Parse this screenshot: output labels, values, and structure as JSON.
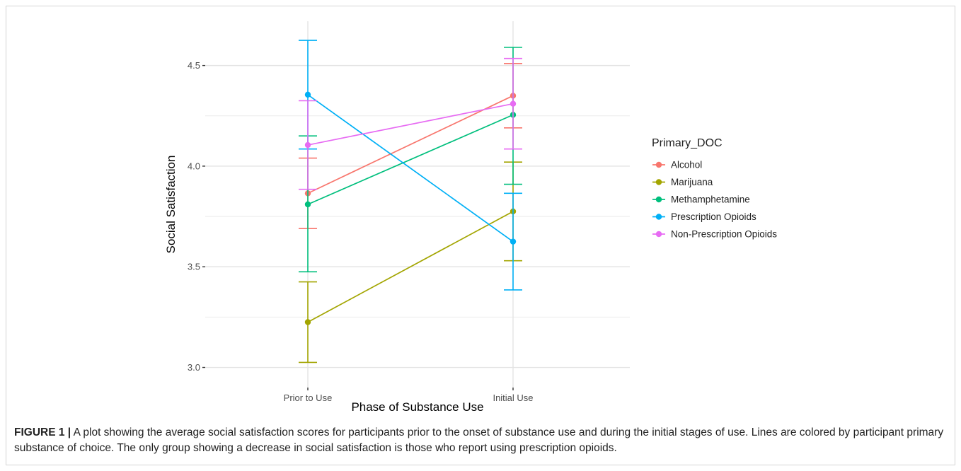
{
  "chart_data": {
    "type": "line",
    "xlabel": "Phase of Substance Use",
    "ylabel": "Social Satisfaction",
    "categories": [
      "Prior to Use",
      "Initial Use"
    ],
    "ylim": [
      2.9,
      4.72
    ],
    "yticks": [
      3.0,
      3.5,
      4.0,
      4.5
    ],
    "ytick_labels": [
      "3.0",
      "3.5",
      "4.0",
      "4.5"
    ],
    "grid": true,
    "legend_title": "Primary_DOC",
    "legend_position": "right",
    "series": [
      {
        "name": "Alcohol",
        "color": "#F8766D",
        "values": [
          3.865,
          4.35
        ],
        "err_low": [
          3.69,
          4.19
        ],
        "err_high": [
          4.04,
          4.51
        ]
      },
      {
        "name": "Marijuana",
        "color": "#A3A500",
        "values": [
          3.225,
          3.775
        ],
        "err_low": [
          3.025,
          3.53
        ],
        "err_high": [
          3.425,
          4.02
        ]
      },
      {
        "name": "Methamphetamine",
        "color": "#00BF7D",
        "values": [
          3.81,
          4.255
        ],
        "err_low": [
          3.475,
          3.91
        ],
        "err_high": [
          4.15,
          4.59
        ]
      },
      {
        "name": "Prescription Opioids",
        "color": "#00B0F6",
        "values": [
          4.355,
          3.625
        ],
        "err_low": [
          4.085,
          3.385
        ],
        "err_high": [
          4.625,
          3.865
        ]
      },
      {
        "name": "Non-Prescription Opioids",
        "color": "#E76BF3",
        "values": [
          4.105,
          4.31
        ],
        "err_low": [
          3.885,
          4.085
        ],
        "err_high": [
          4.325,
          4.535
        ]
      }
    ]
  },
  "caption": {
    "label": "FIGURE 1 |",
    "text": "A plot showing the average social satisfaction scores for participants prior to the onset of substance use and during the initial stages of use. Lines are colored by participant primary substance of choice. The only group showing a decrease in social satisfaction is those who report using prescription opioids."
  }
}
